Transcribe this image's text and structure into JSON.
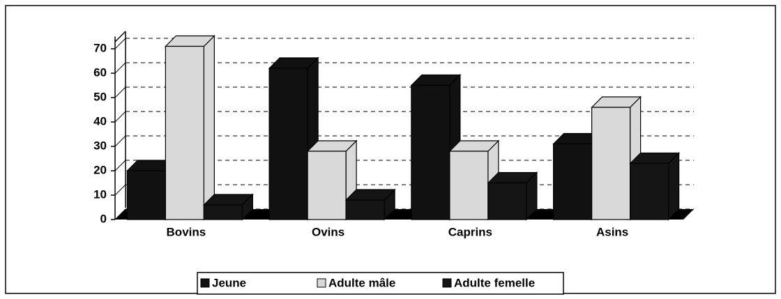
{
  "chart_data": {
    "type": "bar",
    "categories": [
      "Bovins",
      "Ovins",
      "Caprins",
      "Asins"
    ],
    "series": [
      {
        "name": "Jeune",
        "color": "#111111",
        "values": [
          20,
          62,
          55,
          31
        ]
      },
      {
        "name": "Adulte mâle",
        "color": "#d9d9d9",
        "values": [
          71,
          28,
          28,
          46
        ]
      },
      {
        "name": "Adulte femelle",
        "color": "#151515",
        "values": [
          6,
          8,
          15,
          23
        ]
      }
    ],
    "ylim": [
      0,
      75
    ],
    "yticks": [
      0,
      10,
      20,
      30,
      40,
      50,
      60,
      70
    ],
    "grid": true,
    "legend": "bottom"
  }
}
